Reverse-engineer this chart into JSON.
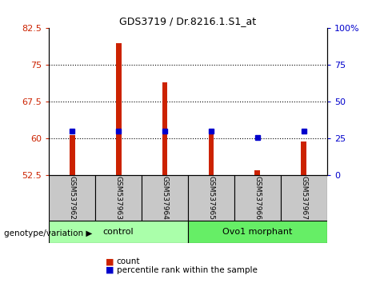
{
  "title": "GDS3719 / Dr.8216.1.S1_at",
  "samples": [
    "GSM537962",
    "GSM537963",
    "GSM537964",
    "GSM537965",
    "GSM537966",
    "GSM537967"
  ],
  "counts": [
    60.7,
    79.5,
    71.5,
    61.2,
    53.6,
    59.5
  ],
  "percentiles": [
    30,
    30,
    30,
    30,
    26,
    30
  ],
  "ylim_left": [
    52.5,
    82.5
  ],
  "ylim_right": [
    0,
    100
  ],
  "yticks_left": [
    52.5,
    60,
    67.5,
    75,
    82.5
  ],
  "yticks_right": [
    0,
    25,
    50,
    75,
    100
  ],
  "ytick_labels_right": [
    "0",
    "25",
    "50",
    "75",
    "100%"
  ],
  "bar_color": "#cc2200",
  "marker_color": "#0000cc",
  "grid_color": "black",
  "n_control": 3,
  "n_morphant": 3,
  "control_label": "control",
  "morphant_label": "Ovo1 morphant",
  "control_color": "#aaffaa",
  "morphant_color": "#66ee66",
  "genotype_label": "genotype/variation",
  "legend_count": "count",
  "legend_percentile": "percentile rank within the sample",
  "base_value": 52.5,
  "tick_label_color_left": "#cc2200",
  "tick_label_color_right": "#0000cc",
  "bar_width": 0.12
}
